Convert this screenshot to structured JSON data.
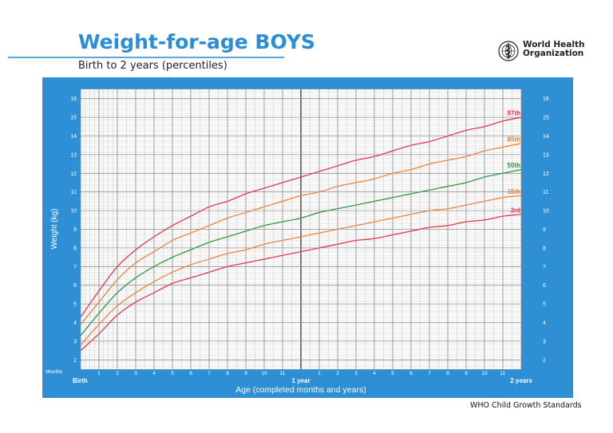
{
  "header": {
    "title": "Weight-for-age BOYS",
    "subtitle": "Birth to 2 years (percentiles)",
    "org_line1": "World Health",
    "org_line2": "Organization",
    "footer": "WHO Child Growth Standards"
  },
  "colors": {
    "brand_blue": "#2a8ed6",
    "frame_blue": "#2f8fd5",
    "p97": "#e8374f",
    "p85": "#f0843c",
    "p50": "#2e9a48",
    "p15": "#f0843c",
    "p3": "#e8374f"
  },
  "chart_data": {
    "type": "line",
    "title": "Weight-for-age BOYS",
    "subtitle": "Birth to 2 years (percentiles)",
    "xlabel": "Age (completed months and years)",
    "ylabel": "Weight (kg)",
    "x_unit_label": "Months",
    "xlim": [
      0,
      24
    ],
    "ylim": [
      1.5,
      16.5
    ],
    "y_ticks": [
      2,
      3,
      4,
      5,
      6,
      7,
      8,
      9,
      10,
      11,
      12,
      13,
      14,
      15,
      16
    ],
    "x_ticks": [
      {
        "x": 0,
        "label": "Birth",
        "bold": true
      },
      {
        "x": 1,
        "label": "1"
      },
      {
        "x": 2,
        "label": "2"
      },
      {
        "x": 3,
        "label": "3"
      },
      {
        "x": 4,
        "label": "4"
      },
      {
        "x": 5,
        "label": "5"
      },
      {
        "x": 6,
        "label": "6"
      },
      {
        "x": 7,
        "label": "7"
      },
      {
        "x": 8,
        "label": "8"
      },
      {
        "x": 9,
        "label": "9"
      },
      {
        "x": 10,
        "label": "10"
      },
      {
        "x": 11,
        "label": "11"
      },
      {
        "x": 12,
        "label": "1 year",
        "bold": true
      },
      {
        "x": 13,
        "label": "1"
      },
      {
        "x": 14,
        "label": "2"
      },
      {
        "x": 15,
        "label": "3"
      },
      {
        "x": 16,
        "label": "4"
      },
      {
        "x": 17,
        "label": "5"
      },
      {
        "x": 18,
        "label": "6"
      },
      {
        "x": 19,
        "label": "7"
      },
      {
        "x": 20,
        "label": "8"
      },
      {
        "x": 21,
        "label": "9"
      },
      {
        "x": 22,
        "label": "10"
      },
      {
        "x": 23,
        "label": "11"
      },
      {
        "x": 24,
        "label": "2 years",
        "bold": true
      }
    ],
    "x": [
      0,
      1,
      2,
      3,
      4,
      5,
      6,
      7,
      8,
      9,
      10,
      11,
      12,
      13,
      14,
      15,
      16,
      17,
      18,
      19,
      20,
      21,
      22,
      23,
      24
    ],
    "series": [
      {
        "name": "97th",
        "color": "#e8374f",
        "values": [
          4.3,
          5.7,
          7.0,
          7.9,
          8.6,
          9.2,
          9.7,
          10.2,
          10.5,
          10.9,
          11.2,
          11.5,
          11.8,
          12.1,
          12.4,
          12.7,
          12.9,
          13.2,
          13.5,
          13.7,
          14.0,
          14.3,
          14.5,
          14.8,
          15.0
        ]
      },
      {
        "name": "85th",
        "color": "#f0843c",
        "values": [
          3.9,
          5.1,
          6.3,
          7.2,
          7.8,
          8.4,
          8.8,
          9.2,
          9.6,
          9.9,
          10.2,
          10.5,
          10.8,
          11.0,
          11.3,
          11.5,
          11.7,
          12.0,
          12.2,
          12.5,
          12.7,
          12.9,
          13.2,
          13.4,
          13.6
        ]
      },
      {
        "name": "50th",
        "color": "#2e9a48",
        "values": [
          3.3,
          4.5,
          5.6,
          6.4,
          7.0,
          7.5,
          7.9,
          8.3,
          8.6,
          8.9,
          9.2,
          9.4,
          9.6,
          9.9,
          10.1,
          10.3,
          10.5,
          10.7,
          10.9,
          11.1,
          11.3,
          11.5,
          11.8,
          12.0,
          12.2
        ]
      },
      {
        "name": "15th",
        "color": "#f0843c",
        "values": [
          2.8,
          3.9,
          4.9,
          5.6,
          6.2,
          6.7,
          7.1,
          7.4,
          7.7,
          7.9,
          8.2,
          8.4,
          8.6,
          8.8,
          9.0,
          9.2,
          9.4,
          9.6,
          9.8,
          10.0,
          10.1,
          10.3,
          10.5,
          10.7,
          10.8
        ]
      },
      {
        "name": "3rd",
        "color": "#e8374f",
        "values": [
          2.5,
          3.4,
          4.4,
          5.1,
          5.6,
          6.1,
          6.4,
          6.7,
          7.0,
          7.2,
          7.4,
          7.6,
          7.8,
          8.0,
          8.2,
          8.4,
          8.5,
          8.7,
          8.9,
          9.1,
          9.2,
          9.4,
          9.5,
          9.7,
          9.8
        ]
      }
    ]
  }
}
